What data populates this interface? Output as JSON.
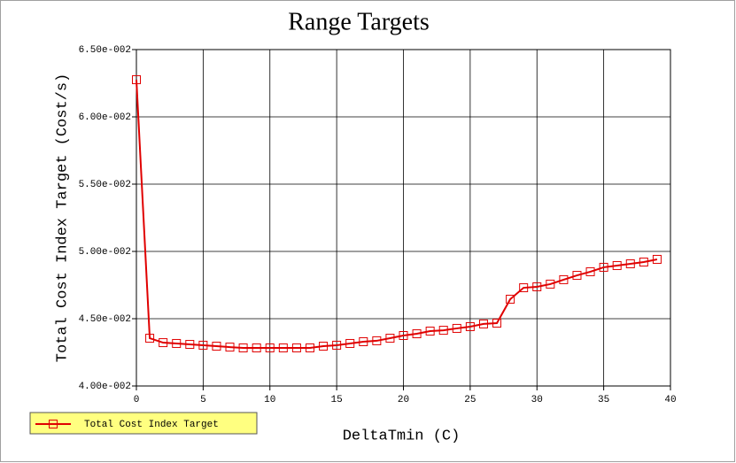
{
  "chart_data": {
    "type": "line",
    "title": "Range Targets",
    "x_label": "DeltaTmin (C)",
    "y_label": "Total Cost Index Target (Cost/s)",
    "x": [
      0,
      1,
      2,
      3,
      4,
      5,
      6,
      7,
      8,
      9,
      10,
      11,
      12,
      13,
      14,
      15,
      16,
      17,
      18,
      19,
      20,
      21,
      22,
      23,
      24,
      25,
      26,
      27,
      28,
      29,
      30,
      31,
      32,
      33,
      34,
      35,
      36,
      37,
      38,
      39
    ],
    "series": [
      {
        "name": "Total Cost Index Target",
        "color": "#e00000",
        "values": [
          0.06276,
          0.04355,
          0.04322,
          0.04316,
          0.04309,
          0.04303,
          0.04296,
          0.04289,
          0.04283,
          0.04283,
          0.04283,
          0.04283,
          0.04283,
          0.04283,
          0.04296,
          0.04303,
          0.04316,
          0.04329,
          0.04336,
          0.04355,
          0.04375,
          0.04388,
          0.04408,
          0.04414,
          0.04428,
          0.04441,
          0.04461,
          0.04467,
          0.04645,
          0.0473,
          0.04737,
          0.04757,
          0.0479,
          0.04822,
          0.04849,
          0.04882,
          0.04895,
          0.04908,
          0.04921,
          0.04941
        ]
      }
    ],
    "xlim": [
      0,
      40
    ],
    "xticks": [
      0,
      5,
      10,
      15,
      20,
      25,
      30,
      35,
      40
    ],
    "ylim": [
      0.04,
      0.065
    ],
    "yticks": [
      {
        "value": 0.04,
        "label": "4.00e-002"
      },
      {
        "value": 0.045,
        "label": "4.50e-002"
      },
      {
        "value": 0.05,
        "label": "5.00e-002"
      },
      {
        "value": 0.055,
        "label": "5.50e-002"
      },
      {
        "value": 0.06,
        "label": "6.00e-002"
      },
      {
        "value": 0.065,
        "label": "6.50e-002"
      }
    ],
    "grid": true,
    "legend": "bottom-left"
  }
}
